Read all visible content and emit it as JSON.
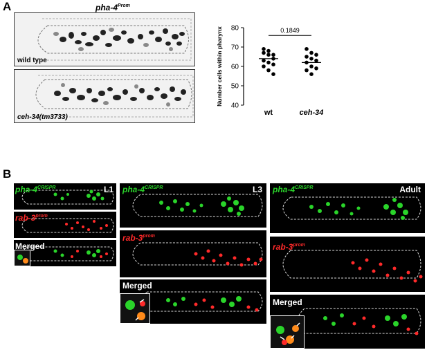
{
  "panel_a": {
    "letter": "A",
    "title": "pha-4",
    "title_sup": "Prom",
    "images": [
      {
        "label": "wild type"
      },
      {
        "label": "ceh-34(tm3733)"
      }
    ]
  },
  "chart_data": {
    "type": "scatter",
    "ylabel": "Number cells within pharynx",
    "ylim": [
      40,
      80
    ],
    "yticks": [
      40,
      50,
      60,
      70,
      80
    ],
    "categories": [
      "wt",
      "ceh-34"
    ],
    "pvalue_label": "0.1849",
    "series": [
      {
        "category": "wt",
        "values": [
          69,
          68,
          66,
          67,
          66,
          64,
          63,
          62,
          61,
          60,
          58,
          56
        ],
        "mean": 64
      },
      {
        "category": "ceh-34",
        "values": [
          69,
          67,
          66,
          65,
          64,
          63,
          62,
          60,
          59,
          58,
          56
        ],
        "mean": 62
      }
    ]
  },
  "panel_b": {
    "letter": "B",
    "columns": [
      {
        "stage": "L1",
        "green_label": "pha-4",
        "green_sup": "CRISPR",
        "red_label": "rab-3",
        "red_sup": "prom",
        "merged_label": "Merged"
      },
      {
        "stage": "L3",
        "green_label": "pha-4",
        "green_sup": "CRISPR",
        "red_label": "rab-3",
        "red_sup": "prom",
        "merged_label": "Merged"
      },
      {
        "stage": "Adult",
        "green_label": "pha-4",
        "green_sup": "CRISPR",
        "red_label": "rab-3",
        "red_sup": "prom",
        "merged_label": "Merged"
      }
    ]
  },
  "colors": {
    "green_channel": "#2ad42a",
    "red_channel": "#ff2a2a",
    "background": "#000000"
  }
}
